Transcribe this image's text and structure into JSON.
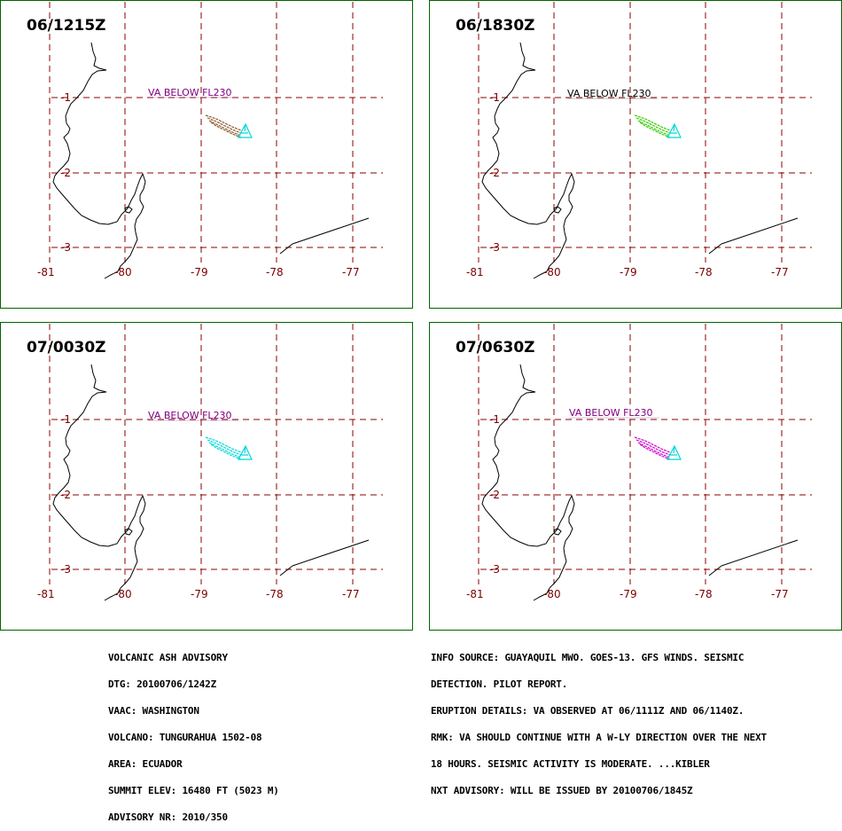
{
  "panels": [
    {
      "time": "06/1215Z",
      "label": "VA BELOW FL230",
      "label_color": "#800080",
      "ash_color": "#8b5a2b"
    },
    {
      "time": "06/1830Z",
      "label": "VA BELOW FL230",
      "label_color": "#000000",
      "ash_color": "#33cc00"
    },
    {
      "time": "07/0030Z",
      "label": "VA BELOW FL230",
      "label_color": "#800080",
      "ash_color": "#00d8d8"
    },
    {
      "time": "07/0630Z",
      "label": "VA BELOW FL230",
      "label_color": "#800080",
      "ash_color": "#d000d0"
    }
  ],
  "ticks": {
    "lon": [
      "-81",
      "-80",
      "-79",
      "-78",
      "-77"
    ],
    "lat": [
      "-1",
      "-2",
      "-3"
    ]
  },
  "colors": {
    "border": "#006400",
    "grid": "#8b0000",
    "tick_text": "#7a0000",
    "volcano": "#00d8d8",
    "coast": "#000000"
  },
  "advisory_left": [
    "VOLCANIC ASH ADVISORY",
    "DTG: 20100706/1242Z",
    "VAAC: WASHINGTON",
    "VOLCANO: TUNGURAHUA 1502-08",
    "AREA: ECUADOR",
    "SUMMIT ELEV: 16480 FT (5023 M)",
    "ADVISORY NR: 2010/350"
  ],
  "advisory_right": [
    "INFO SOURCE: GUAYAQUIL MWO. GOES-13. GFS WINDS. SEISMIC",
    "DETECTION. PILOT REPORT.",
    "ERUPTION DETAILS: VA OBSERVED AT 06/1111Z AND 06/1140Z.",
    "RMK: VA SHOULD CONTINUE WITH A W-LY DIRECTION OVER THE NEXT",
    "18 HOURS. SEISMIC ACTIVITY IS MODERATE. ...KIBLER",
    "NXT ADVISORY: WILL BE ISSUED BY 20100706/1845Z"
  ]
}
